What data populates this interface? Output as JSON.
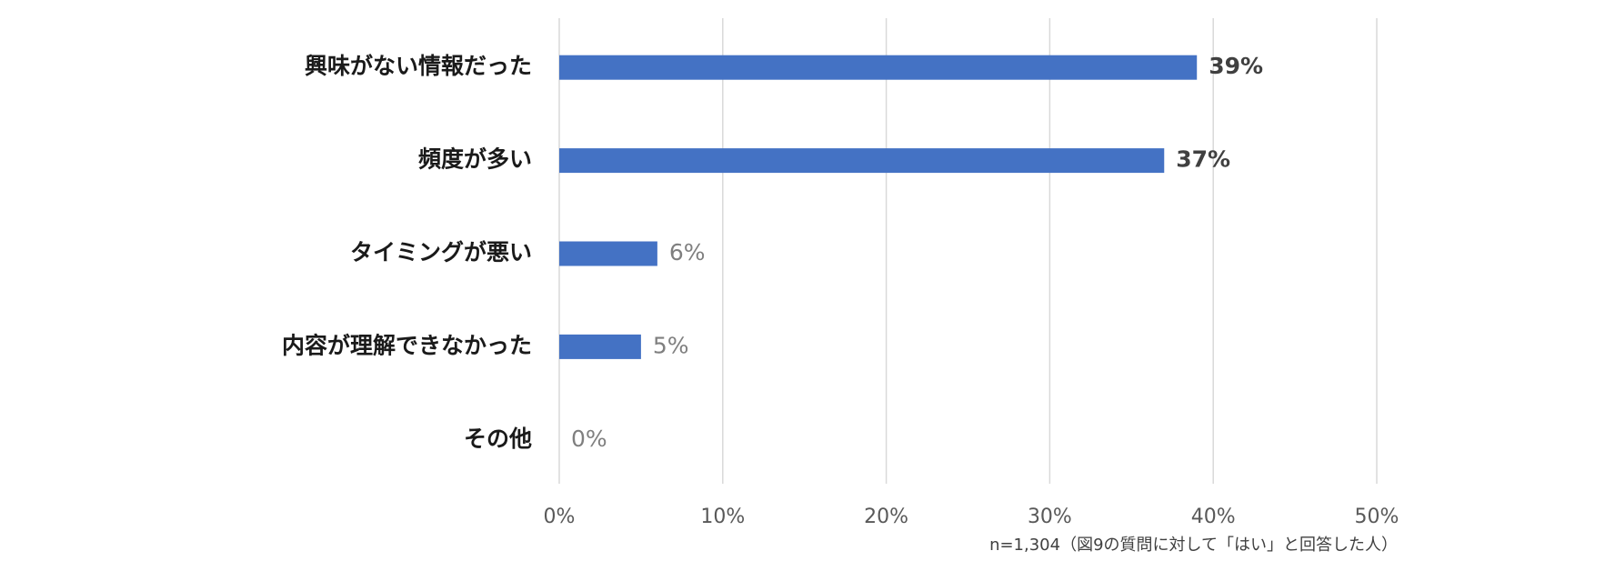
{
  "chart_data": {
    "type": "bar",
    "orientation": "horizontal",
    "categories": [
      "興味がない情報だった",
      "頻度が多い",
      "タイミングが悪い",
      "内容が理解できなかった",
      "その他"
    ],
    "values": [
      39,
      37,
      6,
      5,
      0
    ],
    "value_labels": [
      "39%",
      "37%",
      "6%",
      "5%",
      "0%"
    ],
    "emphasis": [
      true,
      true,
      false,
      false,
      false
    ],
    "color": "#4472c4",
    "xlim": [
      0,
      50
    ],
    "xticks": [
      {
        "value": 0,
        "label": "0%"
      },
      {
        "value": 10,
        "label": "10%"
      },
      {
        "value": 20,
        "label": "20%"
      },
      {
        "value": 30,
        "label": "30%"
      },
      {
        "value": 40,
        "label": "40%"
      },
      {
        "value": 50,
        "label": "50%"
      }
    ],
    "grid": true,
    "note": "n=1,304（図9の質問に対して「はい」と回答した人）"
  }
}
